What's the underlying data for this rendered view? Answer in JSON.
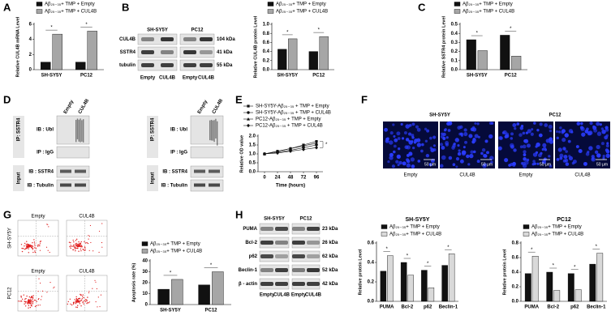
{
  "panel_labels": [
    "A",
    "B",
    "C",
    "D",
    "E",
    "F",
    "G",
    "H"
  ],
  "blot_B": {
    "cell_lines": [
      "SH-SY5Y",
      "PC12"
    ],
    "rows": [
      "CUL4B",
      "SSTR4",
      "tubulin"
    ],
    "sizes": [
      "104 kDa",
      "41 kDa",
      "55 kDa"
    ],
    "lanes": [
      "Empty",
      "CUL4B",
      "Empty",
      "CUL4B"
    ]
  },
  "blot_D": {
    "lanes": [
      "Empty",
      "CUL4B"
    ],
    "ip": "IP: SSTR4",
    "ib_ubl": "IB : Ubl",
    "ip_igg": "IP : IgG",
    "input": "Input",
    "ib_sstr4": "IB : SSTR4",
    "ib_tubulin": "IB : Tubulin"
  },
  "images_F": {
    "cell_lines": [
      "SH-SY5Y",
      "PC12"
    ],
    "groups": [
      "Empty",
      "CUL4B",
      "Empty",
      "CUL4B"
    ],
    "scale": "50 μm"
  },
  "flow_G": {
    "groups": [
      "Empty",
      "CUL4B"
    ],
    "cell_lines": [
      "SH-SY5Y",
      "PC12"
    ]
  },
  "blot_H": {
    "cell_lines": [
      "SH-SY5Y",
      "PC12"
    ],
    "rows": [
      "PUMA",
      "Bcl-2",
      "p62",
      "Beclin-1",
      "β - actin"
    ],
    "sizes": [
      "23 kDa",
      "26 kDa",
      "62 kDa",
      "52 kDa",
      "42 kDa"
    ],
    "lanes": [
      "Empty",
      "CUL4B",
      "Empty",
      "CUL4B"
    ]
  },
  "chart_data": [
    {
      "type": "bar",
      "y_label": "Relative CUL4B mRNA Level",
      "categories": [
        "SH-SY5Y",
        "PC12"
      ],
      "significance": "*",
      "series": [
        {
          "name": "Aβ₂₅₋₃₅+ TMP + Empty",
          "color": "#111111",
          "values": [
            1.0,
            1.0
          ]
        },
        {
          "name": "Aβ₂₅₋₃₅+ TMP + CUL4B",
          "color": "#a6a6a6",
          "values": [
            4.7,
            5.1
          ]
        }
      ],
      "ylim": [
        0,
        6
      ],
      "yticks": [
        0,
        2,
        4,
        6
      ]
    },
    {
      "type": "bar",
      "y_label": "Relative CUL4B protein Level",
      "categories": [
        "SH-SY5Y",
        "PC12"
      ],
      "significance": "*",
      "series": [
        {
          "name": "Aβ₂₅₋₃₅+ TMP + Empty",
          "color": "#111111",
          "values": [
            0.45,
            0.4
          ]
        },
        {
          "name": "Aβ₂₅₋₃₅+ TMP + CUL4B",
          "color": "#a6a6a6",
          "values": [
            0.68,
            0.73
          ]
        }
      ],
      "ylim": [
        0,
        1
      ],
      "yticks": [
        {
          "value": 0,
          "label": "0.0"
        },
        0.2,
        0.4,
        0.6,
        0.8,
        {
          "value": 1,
          "label": "1.0"
        }
      ]
    },
    {
      "type": "bar",
      "y_label": "Relative SSTR4 protein Level",
      "categories": [
        "SH-SY5Y",
        "PC12"
      ],
      "significance": "*",
      "series": [
        {
          "name": "Aβ₂₅₋₃₅+ TMP + Empty",
          "color": "#111111",
          "values": [
            0.33,
            0.38
          ]
        },
        {
          "name": "Aβ₂₅₋₃₅+ TMP + CUL4B",
          "color": "#a6a6a6",
          "values": [
            0.21,
            0.15
          ]
        }
      ],
      "ylim": [
        0,
        0.5
      ],
      "yticks": [
        {
          "value": 0,
          "label": "0.0"
        },
        0.1,
        0.2,
        0.3,
        0.4,
        0.5
      ]
    },
    {
      "type": "line",
      "x_label": "Time (hours)",
      "y_label": "Relative OD value",
      "significance": "*",
      "x": [
        0,
        24,
        48,
        72,
        96
      ],
      "xlim": [
        -12,
        108
      ],
      "xticks": [
        0,
        24,
        48,
        72,
        96
      ],
      "series": [
        {
          "name": "SH-SY5Y-Aβ₂₅₋₃₅ + TMP + Empty",
          "color": "#111111",
          "marker": "square",
          "values": [
            1.0,
            1.15,
            1.3,
            1.5,
            1.7
          ]
        },
        {
          "name": "SH-SY5Y-Aβ₂₅₋₃₅ + TMP + CUL4B",
          "color": "#111111",
          "marker": "circle",
          "values": [
            1.0,
            1.1,
            1.2,
            1.35,
            1.5
          ]
        },
        {
          "name": "PC12-Aβ₂₅₋₃₅ + TMP + Empty",
          "color": "#111111",
          "marker": "triangle",
          "values": [
            1.0,
            1.15,
            1.3,
            1.45,
            1.6
          ]
        },
        {
          "name": "PC12-Aβ₂₅₋₃₅ + TMP + CUL4B",
          "color": "#111111",
          "marker": "diamond",
          "values": [
            1.0,
            1.05,
            1.15,
            1.25,
            1.35
          ]
        }
      ],
      "ylim": [
        0,
        2
      ],
      "yticks": [
        {
          "value": 0,
          "label": "0.0"
        },
        0.5,
        {
          "value": 1,
          "label": "1.0"
        },
        1.5,
        {
          "value": 2,
          "label": "2.0"
        }
      ]
    },
    {
      "type": "bar",
      "y_label": "Apoptosis rate (%)",
      "categories": [
        "SH-SY5Y",
        "PC12"
      ],
      "significance": "*",
      "series": [
        {
          "name": "Aβ₂₅₋₃₅+ TMP + Empty",
          "color": "#111111",
          "values": [
            14,
            18
          ]
        },
        {
          "name": "Aβ₂₅₋₃₅+ TMP + CUL4B",
          "color": "#a6a6a6",
          "values": [
            23,
            30
          ]
        }
      ],
      "ylim": [
        0,
        40
      ],
      "yticks": [
        0,
        10,
        20,
        30,
        40
      ]
    },
    {
      "type": "bar",
      "title": "SH-SY5Y",
      "y_label": "Relative protein Level",
      "categories": [
        "PUMA",
        "Bcl-2",
        "p62",
        "Beclin-1"
      ],
      "significance": "*",
      "series": [
        {
          "name": "Aβ₂₅₋₃₅+ TMP + Empty",
          "color": "#111111",
          "values": [
            0.31,
            0.4,
            0.32,
            0.37
          ]
        },
        {
          "name": "Aβ₂₅₋₃₅+ TMP + CUL4B",
          "color": "#d9d9d9",
          "values": [
            0.47,
            0.27,
            0.14,
            0.49
          ]
        }
      ],
      "ylim": [
        0,
        0.6
      ],
      "yticks": [
        {
          "value": 0,
          "label": "0.0"
        },
        0.2,
        0.4,
        0.6
      ]
    },
    {
      "type": "bar",
      "title": "PC12",
      "y_label": "Relative protein Level",
      "categories": [
        "PUMA",
        "Bcl-2",
        "p62",
        "Beclin-1"
      ],
      "significance": "*",
      "series": [
        {
          "name": "Aβ₂₅₋₃₅+ TMP + Empty",
          "color": "#111111",
          "values": [
            0.38,
            0.4,
            0.38,
            0.51
          ]
        },
        {
          "name": "Aβ₂₅₋₃₅+ TMP + CUL4B",
          "color": "#d9d9d9",
          "values": [
            0.62,
            0.15,
            0.16,
            0.66
          ]
        }
      ],
      "ylim": [
        0,
        0.8
      ],
      "yticks": [
        {
          "value": 0,
          "label": "0.0"
        },
        0.2,
        0.4,
        0.6,
        0.8
      ]
    }
  ]
}
